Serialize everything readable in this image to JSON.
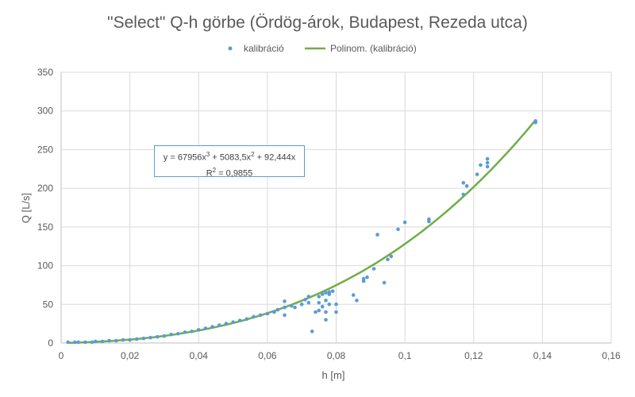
{
  "chart_data": {
    "type": "scatter",
    "title": "\"Select\" Q-h görbe (Ördög-árok, Budapest, Rezeda utca)",
    "xlabel": "h [m]",
    "ylabel": "Q [L/s]",
    "xlim": [
      0,
      0.16
    ],
    "ylim": [
      0,
      350
    ],
    "x_ticks": [
      "0",
      "0,02",
      "0,04",
      "0,06",
      "0,08",
      "0,1",
      "0,12",
      "0,14",
      "0,16"
    ],
    "y_ticks": [
      "0",
      "50",
      "100",
      "150",
      "200",
      "250",
      "300",
      "350"
    ],
    "grid": true,
    "legend_position": "top",
    "legend": [
      "kalibráció",
      "Polinom. (kalibráció)"
    ],
    "colors": {
      "points": "#5b9bd5",
      "trend": "#70ad47"
    },
    "trendline": {
      "name": "Polinom. (kalibráció)",
      "coefficients": [
        67956,
        5083.5,
        92.444
      ],
      "equation_line1": "y = 67956x",
      "equation_sup1": "3",
      "equation_mid": " + 5083,5x",
      "equation_sup2": "2",
      "equation_end": " + 92,444x",
      "r2_label": "R",
      "r2_sup": "2",
      "r2_value": " = 0,9855"
    },
    "series": [
      {
        "name": "kalibráció",
        "points": [
          [
            0.002,
            1
          ],
          [
            0.004,
            1
          ],
          [
            0.005,
            1
          ],
          [
            0.007,
            1
          ],
          [
            0.009,
            1
          ],
          [
            0.01,
            2
          ],
          [
            0.012,
            2
          ],
          [
            0.014,
            3
          ],
          [
            0.016,
            3
          ],
          [
            0.018,
            4
          ],
          [
            0.02,
            4
          ],
          [
            0.022,
            5
          ],
          [
            0.024,
            6
          ],
          [
            0.026,
            7
          ],
          [
            0.028,
            8
          ],
          [
            0.03,
            9
          ],
          [
            0.032,
            11
          ],
          [
            0.034,
            12
          ],
          [
            0.036,
            14
          ],
          [
            0.038,
            15
          ],
          [
            0.04,
            17
          ],
          [
            0.042,
            19
          ],
          [
            0.044,
            21
          ],
          [
            0.046,
            23
          ],
          [
            0.048,
            25
          ],
          [
            0.05,
            27
          ],
          [
            0.052,
            29
          ],
          [
            0.054,
            31
          ],
          [
            0.056,
            34
          ],
          [
            0.058,
            36
          ],
          [
            0.06,
            38
          ],
          [
            0.062,
            40
          ],
          [
            0.063,
            43
          ],
          [
            0.065,
            36
          ],
          [
            0.065,
            46
          ],
          [
            0.065,
            54
          ],
          [
            0.067,
            48
          ],
          [
            0.068,
            46
          ],
          [
            0.07,
            50
          ],
          [
            0.071,
            56
          ],
          [
            0.072,
            60
          ],
          [
            0.072,
            52
          ],
          [
            0.073,
            15
          ],
          [
            0.074,
            40
          ],
          [
            0.075,
            42
          ],
          [
            0.075,
            52
          ],
          [
            0.075,
            60
          ],
          [
            0.076,
            47
          ],
          [
            0.076,
            63
          ],
          [
            0.077,
            30
          ],
          [
            0.077,
            65
          ],
          [
            0.077,
            55
          ],
          [
            0.077,
            40
          ],
          [
            0.078,
            50
          ],
          [
            0.078,
            63
          ],
          [
            0.078,
            66
          ],
          [
            0.079,
            67
          ],
          [
            0.08,
            50
          ],
          [
            0.08,
            40
          ],
          [
            0.085,
            62
          ],
          [
            0.086,
            55
          ],
          [
            0.088,
            80
          ],
          [
            0.088,
            83
          ],
          [
            0.089,
            85
          ],
          [
            0.091,
            96
          ],
          [
            0.092,
            140
          ],
          [
            0.094,
            78
          ],
          [
            0.095,
            108
          ],
          [
            0.096,
            112
          ],
          [
            0.098,
            147
          ],
          [
            0.1,
            156
          ],
          [
            0.107,
            157
          ],
          [
            0.107,
            160
          ],
          [
            0.117,
            192
          ],
          [
            0.117,
            207
          ],
          [
            0.118,
            203
          ],
          [
            0.121,
            218
          ],
          [
            0.122,
            230
          ],
          [
            0.124,
            228
          ],
          [
            0.124,
            233
          ],
          [
            0.124,
            238
          ],
          [
            0.138,
            285
          ],
          [
            0.138,
            287
          ]
        ]
      }
    ]
  }
}
